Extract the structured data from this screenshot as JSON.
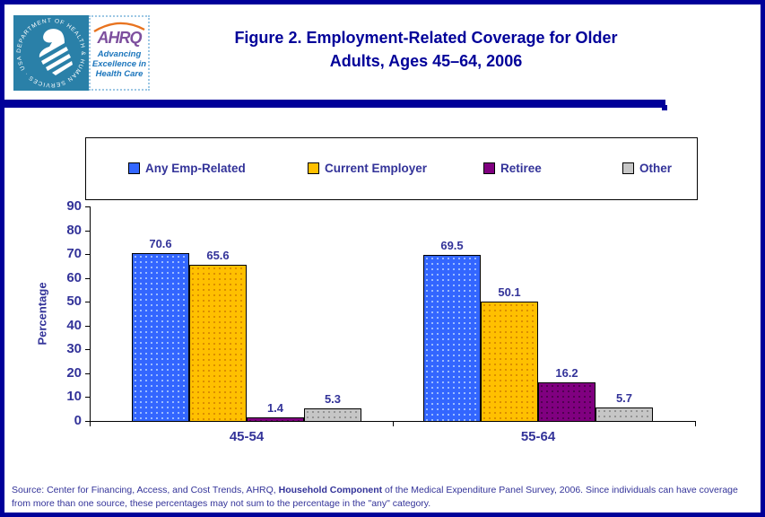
{
  "header": {
    "logo": {
      "seal_text": "DEPARTMENT OF HEALTH & HUMAN SERVICES · USA",
      "ahrq_acronym": "AHRQ",
      "tagline": "Advancing Excellence in Health Care"
    },
    "title_line1": "Figure 2. Employment-Related Coverage for Older",
    "title_line2": "Adults, Ages 45–64, 2006"
  },
  "chart_data": {
    "type": "bar",
    "title": "Figure 2. Employment-Related Coverage for Older Adults, Ages 45–64, 2006",
    "categories": [
      "45-54",
      "55-64"
    ],
    "series": [
      {
        "name": "Any Emp-Related",
        "values": [
          70.6,
          69.5
        ],
        "color": "#3366FF",
        "dot_color": "#A3C2FF"
      },
      {
        "name": "Current Employer",
        "values": [
          65.6,
          50.1
        ],
        "color": "#FFC000",
        "dot_color": "#D98A00"
      },
      {
        "name": "Retiree",
        "values": [
          1.4,
          16.2
        ],
        "color": "#800080",
        "dot_color": "#4D004D"
      },
      {
        "name": "Other",
        "values": [
          5.3,
          5.7
        ],
        "color": "#C6C6C6",
        "dot_color": "#8F8F8F"
      }
    ],
    "xlabel": "",
    "ylabel": "Percentage",
    "ylim": [
      0,
      90
    ],
    "yticks": [
      0,
      10,
      20,
      30,
      40,
      50,
      60,
      70,
      80,
      90
    ],
    "grid": false,
    "legend_position": "top",
    "axis_color": "#000000",
    "label_color": "#333399"
  },
  "footer": {
    "source_prefix": "Source: Center for Financing, Access, and Cost Trends, AHRQ, ",
    "source_bold": "Household Component",
    "source_suffix": " of the Medical Expenditure Panel Survey, 2006. Since individuals can have coverage from more than one source, these percentages may not sum to the percentage in the \"any\" category."
  }
}
